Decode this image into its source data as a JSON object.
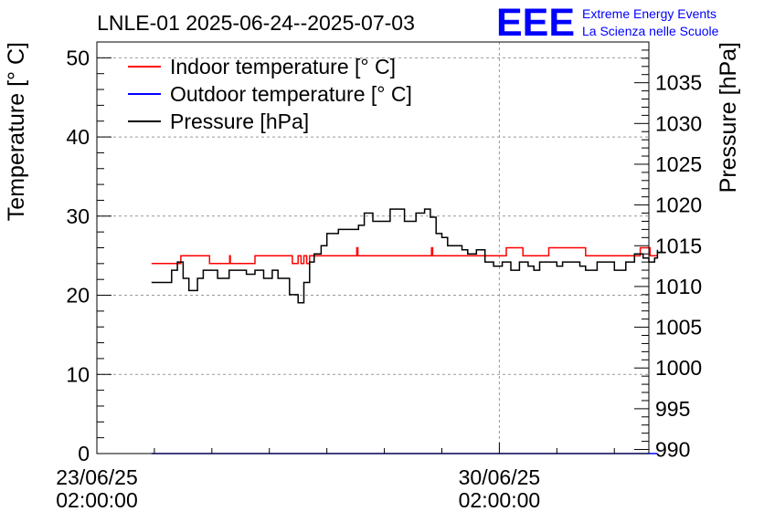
{
  "chart_data": {
    "type": "line",
    "title": "LNLE-01 2025-06-24--2025-07-03",
    "logo": {
      "mark": "EEE",
      "line1": "Extreme Energy Events",
      "line2": "La Scienza nelle Scuole"
    },
    "ylabel": "Temperature [° C]",
    "y2label": "Pressure [hPa]",
    "ylim": [
      0,
      52
    ],
    "y2lim": [
      989.5,
      1040
    ],
    "yticks": [
      0,
      10,
      20,
      30,
      40,
      50
    ],
    "y2ticks": [
      990,
      995,
      1000,
      1005,
      1010,
      1015,
      1020,
      1025,
      1030,
      1035
    ],
    "xlim": [
      0,
      9.6
    ],
    "xticks": [
      {
        "x": 0,
        "label1": "23/06/25",
        "label2": "02:00:00"
      },
      {
        "x": 7,
        "label1": "30/06/25",
        "label2": "02:00:00"
      }
    ],
    "grid": true,
    "legend_position": "top-left",
    "series": [
      {
        "name": "Indoor temperature [° C]",
        "color": "#ff0000",
        "axis": "left",
        "x": [
          0.95,
          1.45,
          1.46,
          1.95,
          1.96,
          2.3,
          2.31,
          2.32,
          2.75,
          2.76,
          3.4,
          3.45,
          3.5,
          3.55,
          3.6,
          3.65,
          3.7,
          3.85,
          3.86,
          4.5,
          4.52,
          4.54,
          4.55,
          5.8,
          5.82,
          5.84,
          5.85,
          7.1,
          7.12,
          7.4,
          7.41,
          7.6,
          7.62,
          7.84,
          7.86,
          8.3,
          8.5,
          9.0,
          9.2,
          9.4,
          9.45,
          9.6,
          9.62,
          9.75
        ],
        "values": [
          24,
          24,
          25,
          25,
          24,
          24,
          25,
          24,
          25,
          25,
          24,
          24,
          25,
          24,
          25,
          24,
          25,
          25,
          25,
          25,
          26,
          25,
          25,
          25,
          26,
          25,
          25,
          25,
          26,
          26,
          25,
          25,
          25,
          25,
          26,
          26,
          25,
          25,
          25,
          25,
          26,
          26,
          25,
          25
        ]
      },
      {
        "name": "Outdoor temperature [° C]",
        "color": "#0000ff",
        "axis": "left",
        "x": [
          0.95,
          9.75
        ],
        "values": [
          0,
          0
        ]
      },
      {
        "name": "Pressure [hPa]",
        "color": "#000000",
        "axis": "right",
        "x": [
          0.95,
          1.2,
          1.3,
          1.4,
          1.5,
          1.6,
          1.75,
          1.85,
          2.0,
          2.1,
          2.3,
          2.5,
          2.6,
          2.75,
          2.9,
          3.05,
          3.15,
          3.25,
          3.35,
          3.5,
          3.6,
          3.7,
          3.78,
          3.9,
          4.0,
          4.1,
          4.2,
          4.35,
          4.5,
          4.55,
          4.65,
          4.8,
          5.0,
          5.1,
          5.25,
          5.35,
          5.45,
          5.55,
          5.7,
          5.8,
          5.9,
          6.0,
          6.1,
          6.2,
          6.35,
          6.45,
          6.6,
          6.75,
          6.9,
          7.05,
          7.2,
          7.35,
          7.5,
          7.6,
          7.7,
          7.8,
          7.9,
          8.0,
          8.1,
          8.2,
          8.4,
          8.5,
          8.7,
          8.85,
          9.0,
          9.2,
          9.35,
          9.5,
          9.6,
          9.7,
          9.75
        ],
        "values": [
          1010.5,
          1010.5,
          1012,
          1013,
          1011,
          1009.5,
          1011,
          1012,
          1012,
          1011,
          1012,
          1012,
          1011.5,
          1012,
          1011,
          1012,
          1011,
          1011,
          1009,
          1008,
          1010.5,
          1013,
          1014,
          1015,
          1016.5,
          1016.5,
          1017,
          1017,
          1017,
          1017.5,
          1019,
          1018,
          1018,
          1019.5,
          1019.5,
          1018,
          1018,
          1019,
          1019.5,
          1018.5,
          1016.5,
          1016,
          1015,
          1015,
          1014.5,
          1014,
          1014.5,
          1013,
          1012.5,
          1013,
          1012,
          1013,
          1012.5,
          1012,
          1013,
          1013,
          1013,
          1012.5,
          1013,
          1013,
          1012.5,
          1012,
          1013,
          1013,
          1012,
          1013,
          1014,
          1013.5,
          1013,
          1013.5,
          1014.5
        ]
      }
    ]
  }
}
